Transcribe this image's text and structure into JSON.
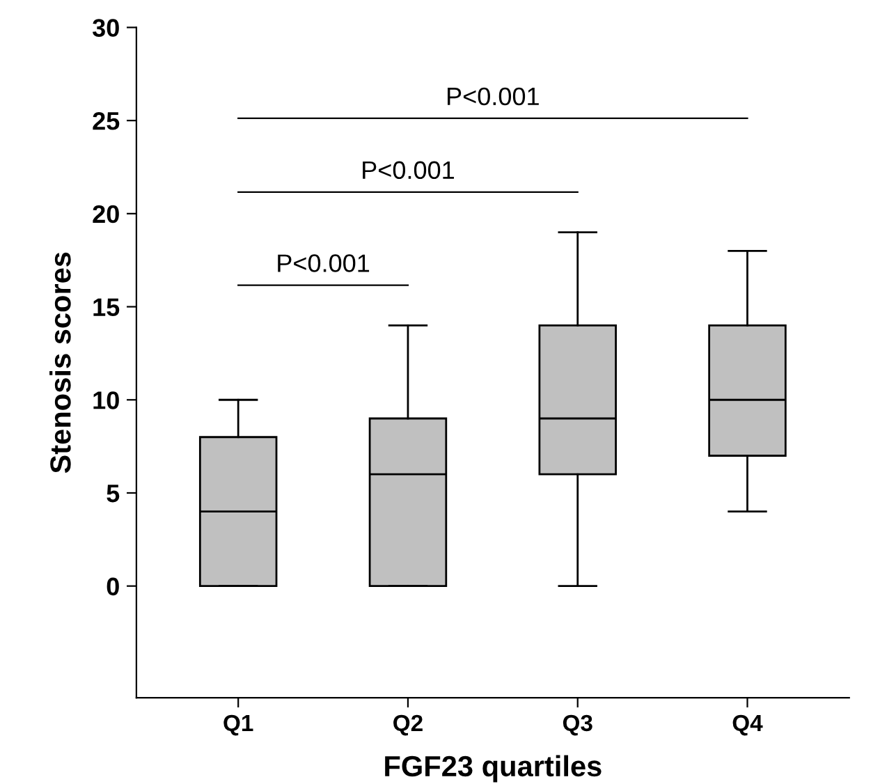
{
  "chart_data": {
    "type": "box",
    "xlabel": "FGF23 quartiles",
    "ylabel": "Stenosis scores",
    "categories": [
      "Q1",
      "Q2",
      "Q3",
      "Q4"
    ],
    "boxes": [
      {
        "low": 0,
        "q1": 0,
        "median": 4,
        "q3": 8,
        "high": 10
      },
      {
        "low": 0,
        "q1": 0,
        "median": 6,
        "q3": 9,
        "high": 14
      },
      {
        "low": 0,
        "q1": 6,
        "median": 9,
        "q3": 14,
        "high": 19
      },
      {
        "low": 4,
        "q1": 7,
        "median": 10,
        "q3": 14,
        "high": 18
      }
    ],
    "color": "#c0c0c0",
    "ylim": [
      -6,
      30
    ],
    "yticks": [
      0,
      5,
      10,
      15,
      20,
      25,
      30
    ],
    "annotations": [
      "P<0.001",
      "P<0.001",
      "P<0.001"
    ]
  }
}
